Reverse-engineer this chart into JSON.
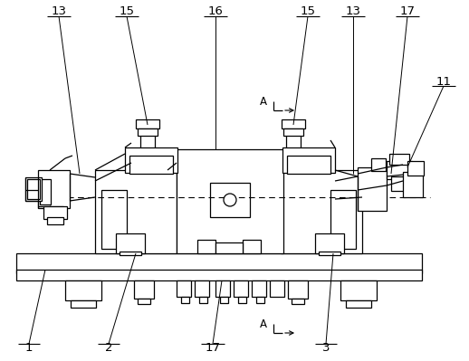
{
  "bg_color": "#ffffff",
  "line_color": "#000000",
  "fig_width": 5.18,
  "fig_height": 3.99,
  "dpi": 100,
  "lw": 0.9,
  "fs": 9.5
}
